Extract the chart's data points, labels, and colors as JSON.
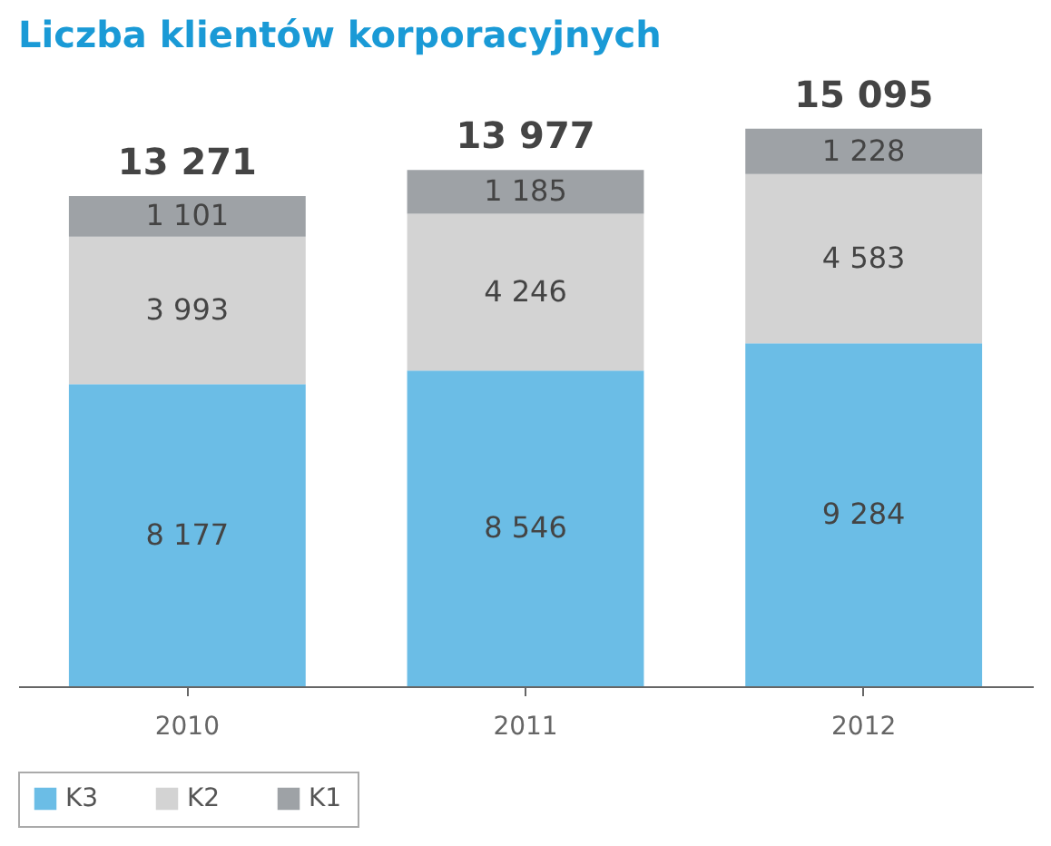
{
  "chart_data": {
    "type": "bar",
    "stacked": true,
    "title": "Liczba klientów korporacyjnych",
    "categories": [
      "2010",
      "2011",
      "2012"
    ],
    "series": [
      {
        "name": "K3",
        "color": "#6bbde6",
        "values": [
          8177,
          8546,
          9284
        ],
        "value_labels": [
          "8 177",
          "8 546",
          "9 284"
        ]
      },
      {
        "name": "K2",
        "color": "#d3d3d3",
        "values": [
          3993,
          4246,
          4583
        ],
        "value_labels": [
          "3 993",
          "4 246",
          "4 583"
        ]
      },
      {
        "name": "K1",
        "color": "#9ea2a6",
        "values": [
          1101,
          1185,
          1228
        ],
        "value_labels": [
          "1 101",
          "1 185",
          "1 228"
        ]
      }
    ],
    "totals": [
      "13 271",
      "13 977",
      "15 095"
    ],
    "legend": "bottom",
    "grid": false
  }
}
